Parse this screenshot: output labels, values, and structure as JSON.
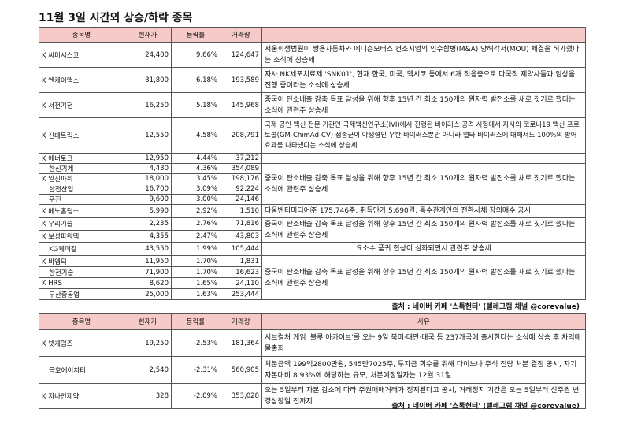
{
  "title": "11월 3일  시간외 상승/하락 종목",
  "up": {
    "headers": [
      "종목명",
      "현재가",
      "등락률",
      "거래량",
      ""
    ],
    "rows": [
      {
        "name": "K 씨미시스코",
        "price": "24,400",
        "rate": "9.66%",
        "vol": "124,647",
        "reason": "서울회생법원이 쌍용자동차와 에디슨모터스 컨소시엄의 인수합병(M&A) 양해각서(MOU) 체결을 허가했다는 소식에 상승세"
      },
      {
        "name": "K 엔케이맥스",
        "price": "31,800",
        "rate": "6.18%",
        "vol": "193,589",
        "reason": "자사 NK세포치료제 'SNK01', 현재 한국, 미국, 멕시코 등에서 6개 적응증으로 다국적 제약사들과 임상을 진행 중이라는 소식에 상승세"
      },
      {
        "name": "K 서전기전",
        "price": "16,250",
        "rate": "5.18%",
        "vol": "145,968",
        "reason": "중국이 탄소배출 감축 목표 달성을 위해 향후 15년 간 최소 150개의 원자력 발전소를 새로 짓기로 했다는 소식에 관련주 상승세"
      },
      {
        "name": "K 신테트릭스",
        "price": "12,550",
        "rate": "4.58%",
        "vol": "208,791",
        "reason": "국제 공인 백신 전문 기관인 국제백신연구소(IVI)에서 진행된 바이러스 공격 시험에서 자사의 코로나19 백신 프로토콜(GM-ChimAd-CV) 접종군이 야생형인 우한 바이러스뿐만 아니라 델타 바이러스에 대해서도 100%의 방어효과를 나타냈다는 소식에 상승세"
      },
      {
        "name": "K 에너토크",
        "price": "12,950",
        "rate": "4.44%",
        "vol": "37,212"
      },
      {
        "name": "한신기계",
        "price": "4,430",
        "rate": "4.36%",
        "vol": "354,089",
        "reason": "중국이 탄소배출 감축 목표 달성을 위해 향후 15년 간 최소 150개의 원자력 발전소를 새로 짓기로 했다는 소식에 관련주 상승세"
      },
      {
        "name": "K 일진파워",
        "price": "18,000",
        "rate": "3.45%",
        "vol": "198,176"
      },
      {
        "name": "한전산업",
        "price": "16,700",
        "rate": "3.09%",
        "vol": "92,224"
      },
      {
        "name": "우진",
        "price": "9,600",
        "rate": "3.00%",
        "vol": "24,146"
      },
      {
        "name": "K 베노홀딩스",
        "price": "5,990",
        "rate": "2.92%",
        "vol": "1,510",
        "reason": "다올벤티미디어㈜ 175,746주, 취득단가 5,690원, 특수관계인의 전환사채 장외매수 공시"
      },
      {
        "name": "K 우리기술",
        "price": "2,235",
        "rate": "2.76%",
        "vol": "71,816",
        "reason": "중국이 탄소배출 감축 목표 달성을 위해 향후 15년 간 최소 150개의 원자력 발전소를 새로 짓기로 했다는 소식에 관련주 상승세"
      },
      {
        "name": "K 보성파워텍",
        "price": "4,355",
        "rate": "2.47%",
        "vol": "43,803"
      },
      {
        "name": "KG케미칼",
        "price": "43,550",
        "rate": "1.99%",
        "vol": "105,444",
        "reason": "요소수 품귀 현상이 심화되면서 관련주 상승세"
      },
      {
        "name": "K 비엠티",
        "price": "11,950",
        "rate": "1.70%",
        "vol": "1,831"
      },
      {
        "name": "한전기술",
        "price": "71,900",
        "rate": "1.70%",
        "vol": "16,623",
        "reason": "중국이 탄소배출 감축 목표 달성을 위해 향후 15년 간 최소 150개의 원자력 발전소를 새로 짓기로 했다는 소식에 관련주 상승세"
      },
      {
        "name": "K HRS",
        "price": "8,620",
        "rate": "1.65%",
        "vol": "24,110"
      },
      {
        "name": "두산중공업",
        "price": "25,000",
        "rate": "1.63%",
        "vol": "253,444"
      }
    ],
    "source": "출처 : 네이버 카페 '스톡헌터' (텔레그램 채널 @corevalue)"
  },
  "down": {
    "headers": [
      "종목명",
      "현재가",
      "등락률",
      "거래량",
      "사유"
    ],
    "rows": [
      {
        "name": "K 넷게임즈",
        "price": "19,250",
        "rate": "-2.53%",
        "vol": "181,364",
        "reason": "서브컬처 게임 '블루 아카이브'를 오는 9일 북미·대만·태국 등 237개국에 출시한다는 소식에 상승 후 차익매물출회"
      },
      {
        "name": "금호에이치티",
        "price": "2,540",
        "rate": "-2.31%",
        "vol": "560,905",
        "reason": "처분금액 199억2800만원, 545만7025주, 투자금 회수를 위해 다이노나 주식 전량 처분 결정 공시, 자기자본대비 8.93%에 해당하는 규모, 처분예정일자는 12월 31일"
      },
      {
        "name": "K 지나인제약",
        "price": "328",
        "rate": "-2.09%",
        "vol": "353,028",
        "reason": "오는 5일부터 자본 감소에 따라 주권매매거래가 정지된다고 공시, 거래정지 기간은 오는 5일부터 신주권 변경상장일 전까지"
      }
    ],
    "source": "출처 : 네이버 카페 '스톡헌터' (텔레그램 채널 @corevalue)"
  },
  "colors": {
    "header_bg": "#f7caca",
    "border": "#555555"
  }
}
